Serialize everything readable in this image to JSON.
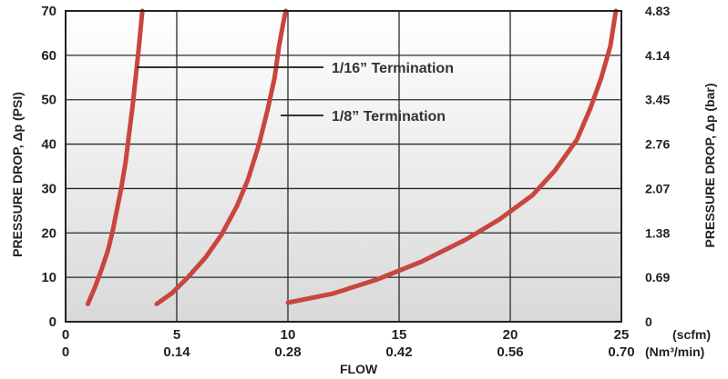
{
  "chart_data": {
    "type": "line",
    "x_axis": {
      "primary_unit": "(scfm)",
      "primary_ticks": [
        "0",
        "5",
        "10",
        "15",
        "20",
        "25"
      ],
      "primary_range": [
        0,
        25
      ],
      "secondary_unit": "(Nm³/min)",
      "secondary_ticks": [
        "0",
        "0.14",
        "0.28",
        "0.42",
        "0.56",
        "0.70"
      ],
      "label": "FLOW"
    },
    "y_axis_left": {
      "label": "PRESSURE DROP, Δp (PSI)",
      "ticks": [
        "0",
        "10",
        "20",
        "30",
        "40",
        "50",
        "60",
        "70"
      ],
      "range": [
        0,
        70
      ]
    },
    "y_axis_right": {
      "label": "PRESSURE DROP, Δp (bar)",
      "ticks": [
        "0",
        "0.69",
        "1.38",
        "2.07",
        "2.76",
        "3.45",
        "4.14",
        "4.83"
      ],
      "values": [
        0,
        0.69,
        1.38,
        2.07,
        2.76,
        3.45,
        4.14,
        4.83
      ]
    },
    "grid": true,
    "plot_background": "gradient-gray",
    "line_color": "#c8463f",
    "annotations": [
      {
        "text": "1/16” Termination",
        "points_to_psi": 57
      },
      {
        "text": "1/8” Termination",
        "points_to_psi": 46
      }
    ],
    "series": [
      {
        "x": [
          1.0,
          1.3,
          1.6,
          1.9,
          2.1,
          2.3,
          2.5,
          2.7,
          2.85,
          3.0,
          3.15,
          3.3,
          3.45
        ],
        "y": [
          4,
          7.5,
          11.5,
          16,
          20,
          25,
          30,
          36,
          42,
          48,
          55,
          62,
          70
        ]
      },
      {
        "x": [
          4.1,
          4.8,
          5.5,
          6.3,
          7.0,
          7.7,
          8.2,
          8.7,
          9.1,
          9.4,
          9.6,
          9.8,
          9.9
        ],
        "y": [
          4,
          6.5,
          10,
          14.5,
          19.5,
          26,
          32,
          40,
          48,
          55,
          62,
          67.5,
          70
        ]
      },
      {
        "x": [
          10.0,
          12.0,
          14.0,
          16.0,
          18.0,
          19.5,
          21.0,
          22.0,
          23.0,
          23.6,
          24.1,
          24.5,
          24.75
        ],
        "y": [
          4.3,
          6.3,
          9.5,
          13.5,
          18.5,
          23,
          28.5,
          34,
          41,
          48,
          55,
          62,
          70
        ]
      }
    ]
  }
}
